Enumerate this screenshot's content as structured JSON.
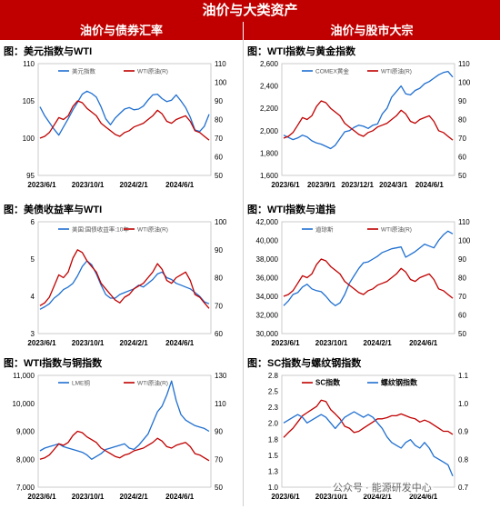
{
  "header": {
    "title": "油价与大类资产",
    "left_section": "油价与债券汇率",
    "right_section": "油价与股市大宗"
  },
  "watermark": "公众号 · 能源研发中心",
  "colors": {
    "banner": "#c00000",
    "blue": "#1f6fd0",
    "red": "#c00000"
  },
  "chart_data": [
    {
      "id": "p1",
      "type": "line",
      "title": "图：美元指数与WTI",
      "x_ticks": [
        "2023/6/1",
        "2023/10/1",
        "2024/2/1",
        "2024/6/1"
      ],
      "y_left_ticks": [
        "95",
        "100",
        "105",
        "110"
      ],
      "y_left_range": [
        95,
        110
      ],
      "y_right_ticks": [
        "50",
        "60",
        "70",
        "80",
        "90",
        "100",
        "110"
      ],
      "y_right_range": [
        50,
        110
      ],
      "legend_style": "small",
      "series": [
        {
          "name": "美元指数",
          "axis": "left",
          "color": "#1f6fd0",
          "values": [
            104.2,
            103.0,
            102.1,
            101.2,
            100.4,
            101.5,
            102.6,
            103.8,
            104.8,
            105.9,
            106.3,
            106.0,
            105.5,
            104.2,
            102.6,
            101.8,
            102.7,
            103.3,
            103.9,
            104.1,
            103.8,
            103.9,
            104.3,
            105.1,
            105.8,
            105.9,
            105.3,
            104.9,
            105.1,
            105.8,
            105.0,
            104.1,
            102.8,
            101.1,
            100.9,
            101.6,
            103.2
          ]
        },
        {
          "name": "WTI原油(R)",
          "axis": "right",
          "color": "#c00000",
          "values": [
            70,
            71,
            73,
            77,
            81,
            80,
            82,
            87,
            90,
            89,
            86,
            84,
            82,
            78,
            76,
            74,
            72,
            71,
            73,
            74,
            76,
            77,
            78,
            80,
            82,
            85,
            83,
            79,
            78,
            80,
            81,
            82,
            79,
            74,
            73,
            71,
            69
          ]
        }
      ]
    },
    {
      "id": "p2",
      "type": "line",
      "title": "图：WTI指数与黄金指数",
      "x_ticks": [
        "2023/6/1",
        "2023/9/1",
        "2023/12/1",
        "2024/3/1",
        "2024/6/1"
      ],
      "y_left_ticks": [
        "1,600",
        "1,800",
        "2,000",
        "2,200",
        "2,400",
        "2,600"
      ],
      "y_left_range": [
        1600,
        2600
      ],
      "y_right_ticks": [
        "50",
        "60",
        "70",
        "80",
        "90",
        "100",
        "110"
      ],
      "y_right_range": [
        50,
        110
      ],
      "legend_style": "small",
      "series": [
        {
          "name": "COMEX黄金",
          "axis": "left",
          "color": "#1f6fd0",
          "values": [
            1960,
            1940,
            1920,
            1935,
            1960,
            1945,
            1910,
            1890,
            1880,
            1860,
            1840,
            1870,
            1930,
            1990,
            2000,
            2030,
            2050,
            2040,
            2020,
            2050,
            2060,
            2150,
            2200,
            2300,
            2350,
            2400,
            2330,
            2320,
            2360,
            2380,
            2420,
            2440,
            2470,
            2500,
            2520,
            2530,
            2480
          ]
        },
        {
          "name": "WTI原油(R)",
          "axis": "right",
          "color": "#c00000",
          "values": [
            70,
            71,
            73,
            77,
            81,
            80,
            82,
            87,
            90,
            89,
            86,
            84,
            82,
            78,
            76,
            74,
            72,
            71,
            73,
            74,
            76,
            77,
            78,
            80,
            82,
            85,
            83,
            79,
            78,
            80,
            81,
            82,
            79,
            74,
            73,
            71,
            69
          ]
        }
      ]
    },
    {
      "id": "p3",
      "type": "line",
      "title": "图：美债收益率与WTI",
      "x_ticks": [
        "2023/6/1",
        "2023/10/1",
        "2024/2/1",
        "2024/6/1"
      ],
      "y_left_ticks": [
        "3",
        "4",
        "5",
        "6"
      ],
      "y_left_range": [
        3,
        6
      ],
      "y_right_ticks": [
        "60",
        "70",
        "80",
        "90",
        "100"
      ],
      "y_right_range": [
        60,
        100
      ],
      "legend_style": "small",
      "series": [
        {
          "name": "美国:国债收益率:10年",
          "axis": "left",
          "color": "#1f6fd0",
          "values": [
            3.65,
            3.72,
            3.8,
            3.95,
            4.05,
            4.18,
            4.25,
            4.35,
            4.55,
            4.8,
            4.95,
            4.85,
            4.6,
            4.3,
            4.05,
            3.95,
            3.95,
            4.05,
            4.1,
            4.15,
            4.2,
            4.3,
            4.25,
            4.35,
            4.45,
            4.6,
            4.65,
            4.5,
            4.45,
            4.35,
            4.3,
            4.25,
            4.2,
            4.1,
            4.0,
            3.85,
            3.8
          ]
        },
        {
          "name": "WTI原油(R)",
          "axis": "right",
          "color": "#c00000",
          "values": [
            70,
            71,
            73,
            77,
            81,
            80,
            82,
            87,
            90,
            89,
            86,
            84,
            82,
            78,
            76,
            74,
            72,
            71,
            73,
            74,
            76,
            77,
            78,
            80,
            82,
            85,
            83,
            79,
            78,
            80,
            81,
            82,
            79,
            74,
            73,
            71,
            69
          ]
        }
      ]
    },
    {
      "id": "p4",
      "type": "line",
      "title": "图：WTI指数与道指",
      "x_ticks": [
        "2023/6/1",
        "2023/10/1",
        "2024/2/1",
        "2024/6/1"
      ],
      "y_left_ticks": [
        "30,000",
        "32,000",
        "34,000",
        "36,000",
        "38,000",
        "40,000",
        "42,000"
      ],
      "y_left_range": [
        30000,
        42000
      ],
      "y_right_ticks": [
        "50",
        "60",
        "70",
        "80",
        "90",
        "100",
        "110"
      ],
      "y_right_range": [
        50,
        110
      ],
      "legend_style": "small",
      "series": [
        {
          "name": "道琼斯",
          "axis": "left",
          "color": "#1f6fd0",
          "values": [
            33000,
            33500,
            34200,
            34400,
            35000,
            35300,
            34800,
            34600,
            34500,
            34000,
            33400,
            33000,
            33300,
            34200,
            35400,
            36200,
            37000,
            37600,
            37700,
            38000,
            38300,
            38700,
            38900,
            39100,
            39200,
            39300,
            38200,
            38500,
            38800,
            39200,
            39600,
            39400,
            39200,
            40000,
            40600,
            41000,
            40700
          ]
        },
        {
          "name": "WTI原油(R)",
          "axis": "right",
          "color": "#c00000",
          "values": [
            70,
            71,
            73,
            77,
            81,
            80,
            82,
            87,
            90,
            89,
            86,
            84,
            82,
            78,
            76,
            74,
            72,
            71,
            73,
            74,
            76,
            77,
            78,
            80,
            82,
            85,
            83,
            79,
            78,
            80,
            81,
            82,
            79,
            74,
            73,
            71,
            69
          ]
        }
      ]
    },
    {
      "id": "p5",
      "type": "line",
      "title": "图：WTI指数与铜指数",
      "x_ticks": [
        "2023/6/1",
        "2023/10/1",
        "2024/2/1",
        "2024/6/1"
      ],
      "y_left_ticks": [
        "7,000",
        "8,000",
        "9,000",
        "10,000",
        "11,000"
      ],
      "y_left_range": [
        7000,
        11000
      ],
      "y_right_ticks": [
        "50",
        "70",
        "90",
        "110",
        "130"
      ],
      "y_right_range": [
        50,
        130
      ],
      "legend_style": "small",
      "series": [
        {
          "name": "LME铜",
          "axis": "left",
          "color": "#1f6fd0",
          "values": [
            8300,
            8400,
            8450,
            8500,
            8550,
            8450,
            8400,
            8350,
            8300,
            8250,
            8150,
            8000,
            8100,
            8200,
            8350,
            8400,
            8450,
            8500,
            8550,
            8400,
            8350,
            8500,
            8700,
            8900,
            9300,
            9700,
            9900,
            10300,
            10800,
            10100,
            9600,
            9400,
            9300,
            9200,
            9150,
            9100,
            9000
          ]
        },
        {
          "name": "WTI原油(R)",
          "axis": "right",
          "color": "#c00000",
          "values": [
            70,
            71,
            73,
            77,
            81,
            80,
            82,
            87,
            90,
            89,
            86,
            84,
            82,
            78,
            76,
            74,
            72,
            71,
            73,
            74,
            76,
            77,
            78,
            80,
            82,
            85,
            83,
            79,
            78,
            80,
            81,
            82,
            79,
            74,
            73,
            71,
            69
          ]
        }
      ]
    },
    {
      "id": "p6",
      "type": "line",
      "title": "图：SC指数与螺纹钢指数",
      "x_ticks": [
        "2023/6/1",
        "2023/10/1",
        "2024/2/1",
        "2024/6/1"
      ],
      "y_left_ticks": [
        "1.0",
        "1.3",
        "1.5",
        "1.8",
        "2.0",
        "2.3",
        "2.5",
        "2.8"
      ],
      "y_left_range": [
        1.0,
        2.8
      ],
      "y_right_ticks": [
        "0.7",
        "0.8",
        "0.9",
        "1.0",
        "1.1"
      ],
      "y_right_range": [
        0.7,
        1.1
      ],
      "legend_style": "bold",
      "series": [
        {
          "name": "SC指数",
          "axis": "left",
          "color": "#c00000",
          "values": [
            1.8,
            1.88,
            1.95,
            2.05,
            2.15,
            2.2,
            2.25,
            2.3,
            2.4,
            2.38,
            2.25,
            2.18,
            2.1,
            1.98,
            1.95,
            1.88,
            1.9,
            1.95,
            2.0,
            2.05,
            2.1,
            2.1,
            2.12,
            2.15,
            2.15,
            2.18,
            2.15,
            2.12,
            2.1,
            2.05,
            2.08,
            2.05,
            2.0,
            1.95,
            1.9,
            1.9,
            1.85
          ]
        },
        {
          "name": "螺纹钢指数",
          "axis": "right",
          "color": "#1f6fd0",
          "values": [
            0.93,
            0.94,
            0.95,
            0.96,
            0.95,
            0.93,
            0.94,
            0.95,
            0.96,
            0.95,
            0.93,
            0.91,
            0.93,
            0.95,
            0.96,
            0.97,
            0.96,
            0.95,
            0.96,
            0.95,
            0.93,
            0.91,
            0.88,
            0.86,
            0.85,
            0.84,
            0.86,
            0.87,
            0.85,
            0.84,
            0.86,
            0.84,
            0.81,
            0.8,
            0.79,
            0.78,
            0.74
          ]
        }
      ]
    }
  ]
}
